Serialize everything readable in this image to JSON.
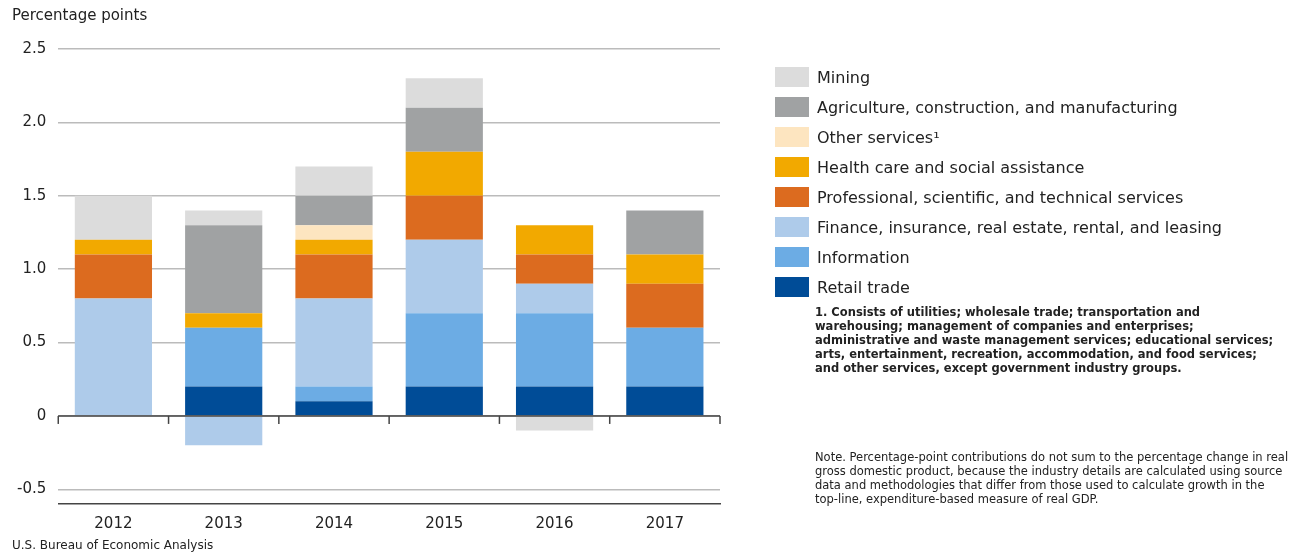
{
  "chart_data": {
    "type": "bar",
    "stacked": true,
    "ylabel": "Percentage points",
    "categories": [
      "2012",
      "2013",
      "2014",
      "2015",
      "2016",
      "2017"
    ],
    "series": [
      {
        "name": "Retail trade",
        "color": "#004c97",
        "values": [
          0,
          0.2,
          0.1,
          0.2,
          0.2,
          0.2
        ]
      },
      {
        "name": "Information",
        "color": "#6cace4",
        "values": [
          0,
          0.4,
          0.1,
          0.5,
          0.5,
          0.4
        ]
      },
      {
        "name": "Finance, insurance, real estate, rental, and leasing",
        "color": "#aecbea",
        "values": [
          0.8,
          -0.2,
          0.6,
          0.5,
          0.2,
          0
        ]
      },
      {
        "name": "Professional, scientific, and technical services",
        "color": "#dc6b1f",
        "values": [
          0.3,
          0,
          0.3,
          0.3,
          0.2,
          0.3
        ]
      },
      {
        "name": "Health care and social assistance",
        "color": "#f2a900",
        "values": [
          0.1,
          0.1,
          0.1,
          0.3,
          0.2,
          0.2
        ]
      },
      {
        "name": "Other services¹",
        "color": "#fde5c0",
        "values": [
          0,
          0,
          0.1,
          0,
          0,
          0
        ]
      },
      {
        "name": "Agriculture, construction, and manufacturing",
        "color": "#a0a2a3",
        "values": [
          0,
          0.6,
          0.2,
          0.3,
          0,
          0.3
        ]
      },
      {
        "name": "Mining",
        "color": "#dcdcdc",
        "values": [
          0.3,
          0.1,
          0.2,
          0.2,
          -0.1,
          0
        ]
      }
    ],
    "ylim": [
      -0.6,
      2.5
    ],
    "yticks": [
      {
        "value": -0.5,
        "label": "-0.5"
      },
      0,
      {
        "value": 0.5,
        "label": "0.5"
      },
      {
        "value": 1,
        "label": "1.0"
      },
      {
        "value": 1.5,
        "label": "1.5"
      },
      {
        "value": 2,
        "label": "2.0"
      },
      {
        "value": 2.5,
        "label": "2.5"
      }
    ],
    "grid": "y",
    "legend": "right",
    "annotations": [
      "1. Consists of utilities; wholesale trade; transportation and warehousing; management of companies and enterprises; administrative and waste management services; educational services; arts, entertainment, recreation, accommodation, and food services; and other services, except government industry groups.",
      "Note. Percentage-point contributions do not sum to the percentage change in real gross domestic product, because the industry details are calculated using source data and methodologies that differ from those used to calculate growth in the top-line, expenditure-based measure of real GDP.",
      "U.S. Bureau of Economic Analysis"
    ]
  }
}
